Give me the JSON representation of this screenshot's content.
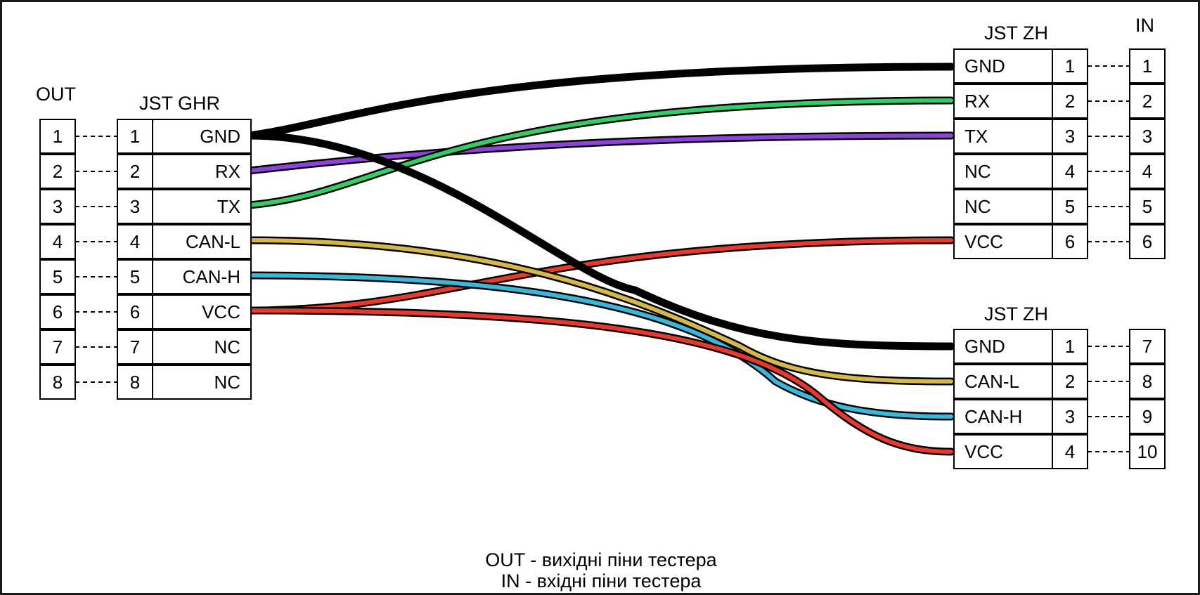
{
  "labels": {
    "out": "OUT",
    "in": "IN",
    "left_connector": "JST GHR",
    "right_top_connector": "JST ZH",
    "right_bottom_connector": "JST ZH"
  },
  "out_pins": [
    "1",
    "2",
    "3",
    "4",
    "5",
    "6",
    "7",
    "8"
  ],
  "left_connector": {
    "pins": [
      {
        "num": "1",
        "signal": "GND",
        "nc": false
      },
      {
        "num": "2",
        "signal": "RX",
        "nc": false
      },
      {
        "num": "3",
        "signal": "TX",
        "nc": false
      },
      {
        "num": "4",
        "signal": "CAN-L",
        "nc": false
      },
      {
        "num": "5",
        "signal": "CAN-H",
        "nc": false
      },
      {
        "num": "6",
        "signal": "VCC",
        "nc": false
      },
      {
        "num": "7",
        "signal": "NC",
        "nc": true
      },
      {
        "num": "8",
        "signal": "NC",
        "nc": true
      }
    ]
  },
  "right_top_connector": {
    "pins": [
      {
        "signal": "GND",
        "num": "1",
        "in": "1",
        "nc": false
      },
      {
        "signal": "RX",
        "num": "2",
        "in": "2",
        "nc": false
      },
      {
        "signal": "TX",
        "num": "3",
        "in": "3",
        "nc": false
      },
      {
        "signal": "NC",
        "num": "4",
        "in": "4",
        "nc": true
      },
      {
        "signal": "NC",
        "num": "5",
        "in": "5",
        "nc": true
      },
      {
        "signal": "VCC",
        "num": "6",
        "in": "6",
        "nc": false
      }
    ]
  },
  "right_bottom_connector": {
    "pins": [
      {
        "signal": "GND",
        "num": "1",
        "in": "7",
        "nc": false
      },
      {
        "signal": "CAN-L",
        "num": "2",
        "in": "8",
        "nc": false
      },
      {
        "signal": "CAN-H",
        "num": "3",
        "in": "9",
        "nc": false
      },
      {
        "signal": "VCC",
        "num": "4",
        "in": "10",
        "nc": false
      }
    ]
  },
  "wires": [
    {
      "name": "gnd-top",
      "from": "GND",
      "to": "top.GND",
      "color": "#000000"
    },
    {
      "name": "rx",
      "from": "RX",
      "to": "top.TX",
      "color": "#8e44d8"
    },
    {
      "name": "tx",
      "from": "TX",
      "to": "top.RX",
      "color": "#33cc66"
    },
    {
      "name": "vcc-top",
      "from": "VCC",
      "to": "top.VCC",
      "color": "#e8392e"
    },
    {
      "name": "gnd-bottom",
      "from": "GND",
      "to": "bottom.GND",
      "color": "#000000"
    },
    {
      "name": "can-l",
      "from": "CAN-L",
      "to": "bottom.CAN-L",
      "color": "#d4b94a"
    },
    {
      "name": "can-h",
      "from": "CAN-H",
      "to": "bottom.CAN-H",
      "color": "#3bb7d9"
    },
    {
      "name": "vcc-bottom",
      "from": "VCC",
      "to": "bottom.VCC",
      "color": "#e8392e"
    }
  ],
  "colors": {
    "nc_text": "#b0b0b0"
  },
  "footer": {
    "line1": "OUT - вихідні піни тестера",
    "line2": "IN - вхідні піни тестера"
  }
}
